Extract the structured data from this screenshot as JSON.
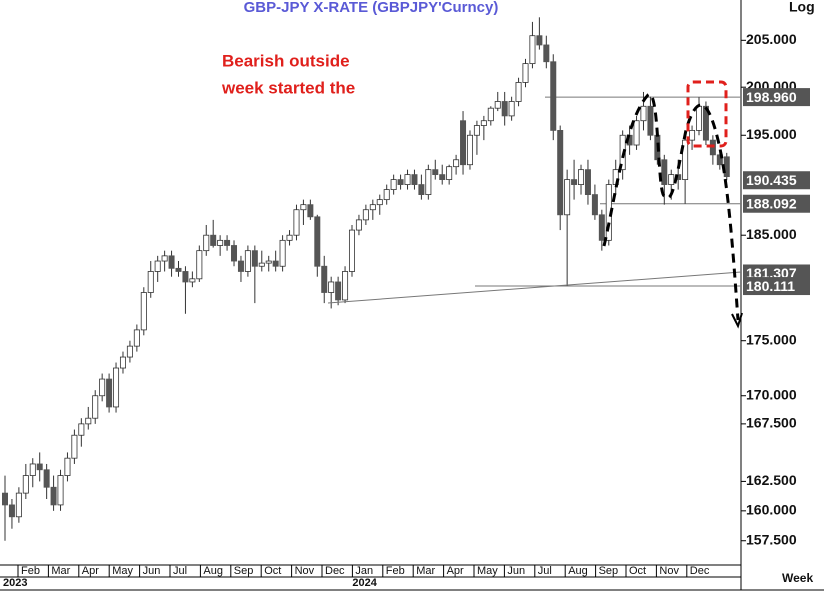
{
  "chart_data": {
    "type": "candlestick",
    "title": "GBP-JPY  X-RATE  (GBPJPY'Curncy)",
    "annotation": [
      "Bearish outside",
      "week started the"
    ],
    "y_label": "Log",
    "x_label": "Week",
    "scale": "log",
    "ylim": [
      155.5,
      209.4
    ],
    "yticks": [
      {
        "value": 157.5,
        "label": "157.500"
      },
      {
        "value": 160,
        "label": "160.000"
      },
      {
        "value": 162.5,
        "label": "162.500"
      },
      {
        "value": 167.5,
        "label": "167.500"
      },
      {
        "value": 170,
        "label": "170.000"
      },
      {
        "value": 175,
        "label": "175.000"
      },
      {
        "value": 185,
        "label": "185.000"
      },
      {
        "value": 195,
        "label": "195.000"
      },
      {
        "value": 200,
        "label": "200.000"
      },
      {
        "value": 205,
        "label": "205.000"
      }
    ],
    "price_labels": [
      {
        "value": 198.96,
        "label": "198.960"
      },
      {
        "value": 190.435,
        "label": "190.435"
      },
      {
        "value": 188.092,
        "label": "188.092"
      },
      {
        "value": 181.307,
        "label": "181.307"
      },
      {
        "value": 180.111,
        "label": "180.111"
      }
    ],
    "months": [
      "Feb",
      "Mar",
      "Apr",
      "May",
      "Jun",
      "Jul",
      "Aug",
      "Sep",
      "Oct",
      "Nov",
      "Dec",
      "Jan",
      "Feb",
      "Mar",
      "Apr",
      "May",
      "Jun",
      "Jul",
      "Aug",
      "Sep",
      "Oct",
      "Nov",
      "Dec"
    ],
    "years": [
      "2023",
      "2024"
    ],
    "up_color": "#ffffff",
    "down_color": "#555555",
    "ohlc": [
      [
        161.5,
        163,
        157.5,
        160.5
      ],
      [
        160.5,
        161,
        158.5,
        159.5
      ],
      [
        159.5,
        162,
        159,
        161.5
      ],
      [
        161.5,
        164,
        161,
        163
      ],
      [
        163,
        164.5,
        162,
        164
      ],
      [
        164,
        165,
        162.5,
        163.5
      ],
      [
        163.5,
        164,
        161,
        162
      ],
      [
        162,
        163,
        160,
        160.5
      ],
      [
        160.5,
        163.5,
        160,
        163
      ],
      [
        163,
        165,
        162.5,
        164.5
      ],
      [
        164.5,
        167,
        164,
        166.5
      ],
      [
        166.5,
        168,
        165.5,
        167.5
      ],
      [
        167.5,
        169,
        167,
        168
      ],
      [
        168,
        170.5,
        167.5,
        170
      ],
      [
        170,
        172,
        169.5,
        171.5
      ],
      [
        171.5,
        172,
        168.5,
        169
      ],
      [
        169,
        173,
        168.5,
        172.5
      ],
      [
        172.5,
        174,
        172,
        173.5
      ],
      [
        173.5,
        175,
        173,
        174.5
      ],
      [
        174.5,
        176.5,
        174,
        176
      ],
      [
        176,
        180,
        175.5,
        179.5
      ],
      [
        179.5,
        182.5,
        179,
        181.5
      ],
      [
        181.5,
        183,
        180.5,
        182.5
      ],
      [
        182.5,
        183.5,
        181.5,
        183
      ],
      [
        183,
        183.5,
        181,
        181.8
      ],
      [
        181.8,
        182.5,
        181,
        181.5
      ],
      [
        181.5,
        182,
        177.5,
        180.5
      ],
      [
        180.5,
        181.5,
        180,
        180.8
      ],
      [
        180.8,
        184,
        180.5,
        183.5
      ],
      [
        183.5,
        186,
        183,
        185
      ],
      [
        185,
        186.5,
        183.8,
        184
      ],
      [
        184,
        185,
        183,
        184.5
      ],
      [
        184.5,
        185,
        183.5,
        184
      ],
      [
        184,
        184.5,
        182,
        182.5
      ],
      [
        182.5,
        183,
        180.5,
        181.5
      ],
      [
        181.5,
        184,
        181,
        183.5
      ],
      [
        183.5,
        184,
        178.5,
        182
      ],
      [
        182,
        183.5,
        181.5,
        182.3
      ],
      [
        182.3,
        183,
        181.5,
        182.5
      ],
      [
        182.5,
        183.5,
        181.5,
        182
      ],
      [
        182,
        185,
        181.5,
        184.5
      ],
      [
        184.5,
        185.5,
        184,
        185
      ],
      [
        185,
        188,
        184.5,
        187.5
      ],
      [
        187.5,
        188.5,
        186,
        188
      ],
      [
        188,
        188.5,
        186.5,
        186.8
      ],
      [
        186.8,
        187,
        181,
        182
      ],
      [
        182,
        183,
        178.5,
        179.5
      ],
      [
        179.5,
        181,
        178,
        180.5
      ],
      [
        180.5,
        181,
        178.3,
        178.8
      ],
      [
        178.8,
        182,
        178.5,
        181.5
      ],
      [
        181.5,
        186,
        181,
        185.5
      ],
      [
        185.5,
        187,
        185,
        186.5
      ],
      [
        186.5,
        188,
        186,
        187.5
      ],
      [
        187.5,
        188.5,
        186.5,
        188
      ],
      [
        188,
        189,
        187,
        188.5
      ],
      [
        188.5,
        190,
        188,
        189.5
      ],
      [
        189.5,
        191,
        189,
        190.5
      ],
      [
        190.5,
        191,
        189.5,
        190
      ],
      [
        190,
        191.5,
        189.5,
        191
      ],
      [
        191,
        191.5,
        189.5,
        190
      ],
      [
        190,
        191,
        188.5,
        189
      ],
      [
        189,
        192,
        188.5,
        191.5
      ],
      [
        191.5,
        192.5,
        190.5,
        191
      ],
      [
        191,
        192,
        190,
        190.5
      ],
      [
        190.5,
        192,
        190,
        191.8
      ],
      [
        191.8,
        193,
        191,
        192.5
      ],
      [
        196.5,
        197.5,
        191,
        192
      ],
      [
        192,
        195.5,
        191.5,
        195
      ],
      [
        195,
        196.5,
        193,
        196
      ],
      [
        196,
        197,
        194.5,
        196.5
      ],
      [
        196.5,
        198,
        196,
        197.8
      ],
      [
        197.8,
        199.5,
        197.5,
        198.5
      ],
      [
        198.5,
        199.5,
        196,
        197
      ],
      [
        197,
        199,
        196.5,
        198.5
      ],
      [
        198.5,
        201,
        198,
        200.5
      ],
      [
        200.5,
        203,
        200,
        202.5
      ],
      [
        202.5,
        207,
        202,
        205.5
      ],
      [
        205.5,
        207.5,
        204,
        204.5
      ],
      [
        204.5,
        205.5,
        202,
        202.7
      ],
      [
        202.7,
        203.5,
        194.5,
        195.5
      ],
      [
        195.5,
        196,
        185.5,
        187
      ],
      [
        187,
        191.5,
        180.111,
        190.5
      ],
      [
        190.5,
        192.5,
        188.5,
        190
      ],
      [
        190,
        192,
        189,
        191.5
      ],
      [
        191.5,
        192.5,
        188,
        189
      ],
      [
        189,
        190,
        186.5,
        187
      ],
      [
        187,
        187.5,
        183.5,
        184.5
      ],
      [
        184.5,
        190.5,
        184,
        190
      ],
      [
        190,
        192.5,
        189,
        191.5
      ],
      [
        191.5,
        195.5,
        190.5,
        195
      ],
      [
        195,
        196,
        193,
        194
      ],
      [
        194,
        197,
        193.5,
        196.5
      ],
      [
        196.5,
        199.5,
        195.5,
        198
      ],
      [
        198,
        199,
        194.5,
        195
      ],
      [
        195,
        195.5,
        192,
        192.5
      ],
      [
        192.5,
        193,
        188,
        190
      ],
      [
        190,
        191.5,
        188.5,
        191
      ],
      [
        191,
        192.5,
        189.5,
        190.5
      ],
      [
        190.5,
        195,
        188.092,
        194.5
      ],
      [
        194.5,
        196,
        193.5,
        195.5
      ],
      [
        195.5,
        198.96,
        195,
        198
      ],
      [
        198,
        198.5,
        194,
        194.5
      ],
      [
        194.5,
        195,
        192,
        193
      ],
      [
        193,
        193.5,
        191.5,
        192
      ],
      [
        192.8,
        193.2,
        190.435,
        190.8
      ]
    ]
  }
}
